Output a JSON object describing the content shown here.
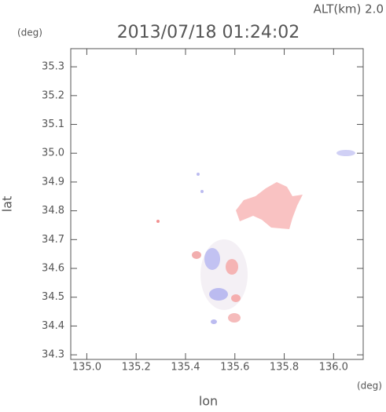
{
  "chart_data": {
    "type": "map",
    "title": "2013/07/18 01:24:02",
    "subtitle": "ALT(km) 2.0",
    "xlabel": "lon",
    "ylabel": "lat",
    "xunit": "(deg)",
    "yunit": "(deg)",
    "xlim": [
      134.935,
      136.12
    ],
    "ylim": [
      34.284,
      35.363
    ],
    "xticks": [
      {
        "value": 135,
        "label": "135.0"
      },
      135.2,
      135.4,
      135.6,
      135.8,
      {
        "value": 136,
        "label": "136.0"
      }
    ],
    "yticks": [
      34.3,
      34.4,
      34.5,
      34.6,
      34.7,
      34.8,
      34.9,
      {
        "value": 35,
        "label": "35.0"
      },
      35.1,
      35.2,
      35.3
    ]
  }
}
